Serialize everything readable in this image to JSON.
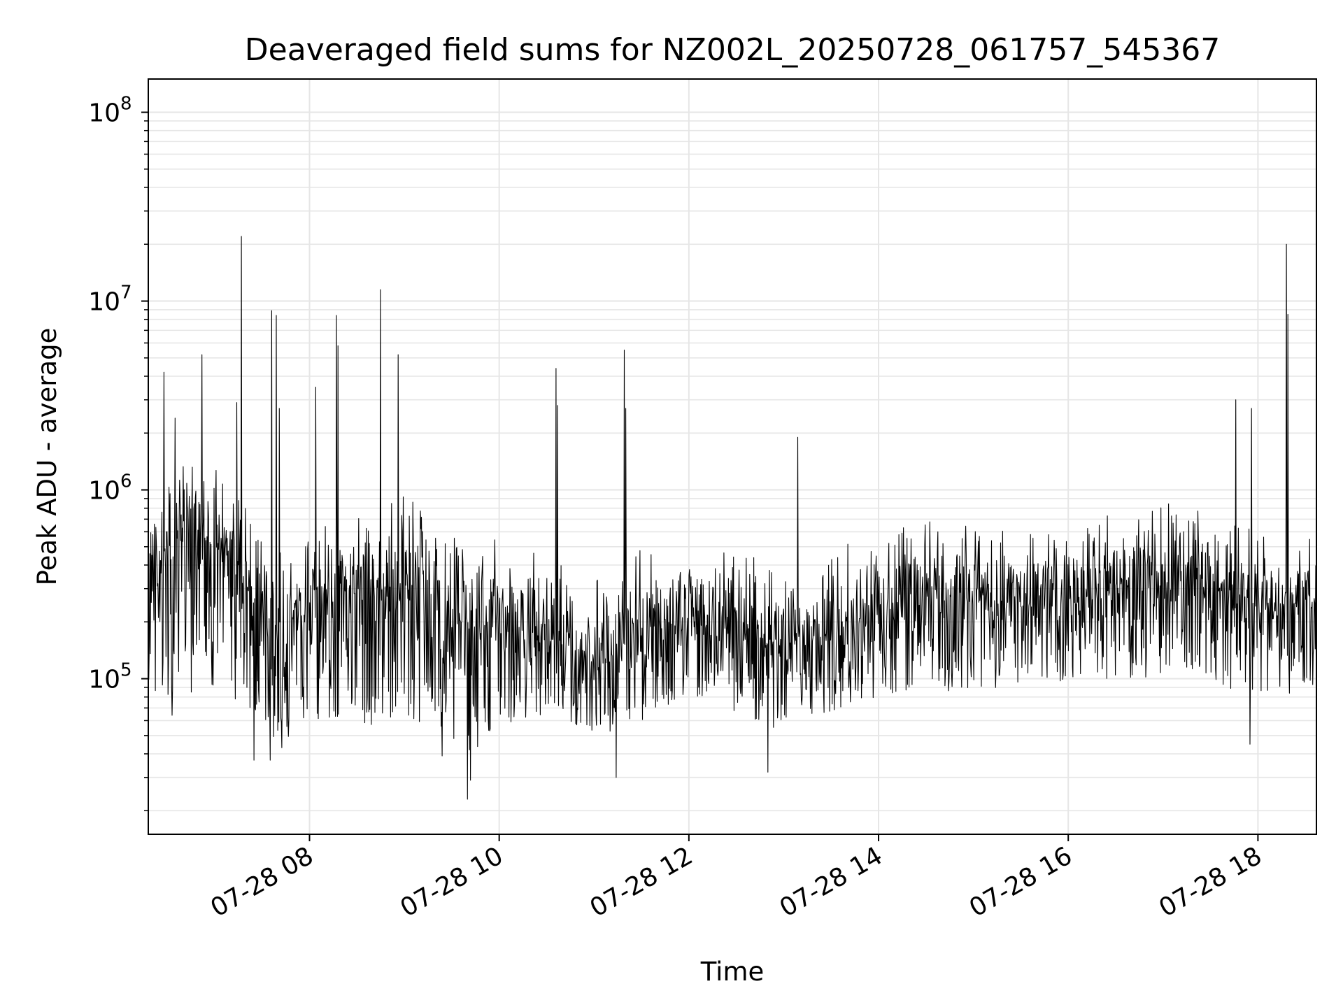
{
  "chart_data": {
    "type": "line",
    "title": "Deaveraged field sums for NZ002L_20250728_061757_545367",
    "xlabel": "Time",
    "ylabel": "Peak ADU - average",
    "yscale": "log",
    "ylim": [
      15000,
      150000000
    ],
    "xlim": [
      "2025-07-28 06:18",
      "2025-07-28 18:37"
    ],
    "grid": true,
    "legend": "none",
    "line_color": "#000000",
    "x_tick_labels": [
      "07-28 08",
      "07-28 10",
      "07-28 12",
      "07-28 14",
      "07-28 16",
      "07-28 18"
    ],
    "x_ticks": [
      "2025-07-28 08:00",
      "2025-07-28 10:00",
      "2025-07-28 12:00",
      "2025-07-28 14:00",
      "2025-07-28 16:00",
      "2025-07-28 18:00"
    ],
    "y_ticks": [
      100000,
      1000000,
      10000000,
      100000000
    ],
    "y_tick_labels": [
      {
        "base": "10",
        "exp": "5"
      },
      {
        "base": "10",
        "exp": "6"
      },
      {
        "base": "10",
        "exp": "7"
      },
      {
        "base": "10",
        "exp": "8"
      }
    ],
    "series": [
      {
        "x": [
          "2025-07-28 06:18",
          "2025-07-28 06:30",
          "2025-07-28 06:45",
          "2025-07-28 07:00",
          "2025-07-28 07:15",
          "2025-07-28 07:30",
          "2025-07-28 07:45",
          "2025-07-28 08:00",
          "2025-07-28 08:15",
          "2025-07-28 08:30",
          "2025-07-28 08:45",
          "2025-07-28 09:00",
          "2025-07-28 09:15",
          "2025-07-28 09:30",
          "2025-07-28 09:45",
          "2025-07-28 10:00",
          "2025-07-28 10:15",
          "2025-07-28 10:30",
          "2025-07-28 10:45",
          "2025-07-28 11:00",
          "2025-07-28 11:15",
          "2025-07-28 11:30",
          "2025-07-28 11:45",
          "2025-07-28 12:00",
          "2025-07-28 12:15",
          "2025-07-28 12:30",
          "2025-07-28 12:45",
          "2025-07-28 13:00",
          "2025-07-28 13:15",
          "2025-07-28 13:30",
          "2025-07-28 13:45",
          "2025-07-28 14:00",
          "2025-07-28 14:15",
          "2025-07-28 14:30",
          "2025-07-28 14:45",
          "2025-07-28 15:00",
          "2025-07-28 15:15",
          "2025-07-28 15:30",
          "2025-07-28 15:45",
          "2025-07-28 16:00",
          "2025-07-28 16:15",
          "2025-07-28 16:30",
          "2025-07-28 16:45",
          "2025-07-28 17:00",
          "2025-07-28 17:15",
          "2025-07-28 17:30",
          "2025-07-28 17:45",
          "2025-07-28 18:00",
          "2025-07-28 18:15",
          "2025-07-28 18:30"
        ],
        "low": [
          100000,
          60000,
          80000,
          90000,
          70000,
          45000,
          40000,
          55000,
          60000,
          50000,
          55000,
          65000,
          50000,
          45000,
          40000,
          55000,
          60000,
          65000,
          55000,
          50000,
          50000,
          60000,
          70000,
          80000,
          75000,
          65000,
          55000,
          55000,
          60000,
          65000,
          75000,
          80000,
          80000,
          90000,
          85000,
          85000,
          90000,
          90000,
          95000,
          95000,
          100000,
          100000,
          95000,
          100000,
          110000,
          100000,
          85000,
          85000,
          80000,
          90000
        ],
        "mid": [
          300000,
          400000,
          600000,
          500000,
          400000,
          200000,
          150000,
          250000,
          300000,
          280000,
          300000,
          320000,
          250000,
          200000,
          180000,
          180000,
          170000,
          160000,
          150000,
          130000,
          130000,
          170000,
          200000,
          220000,
          200000,
          170000,
          160000,
          140000,
          140000,
          170000,
          200000,
          230000,
          250000,
          270000,
          260000,
          250000,
          250000,
          240000,
          250000,
          260000,
          270000,
          280000,
          300000,
          320000,
          330000,
          320000,
          260000,
          230000,
          220000,
          230000
        ],
        "high": [
          700000,
          1100000,
          1500000,
          1300000,
          1000000,
          600000,
          500000,
          800000,
          1000000,
          900000,
          900000,
          1000000,
          700000,
          600000,
          550000,
          600000,
          500000,
          450000,
          400000,
          350000,
          350000,
          500000,
          550000,
          550000,
          500000,
          450000,
          450000,
          380000,
          380000,
          450000,
          550000,
          600000,
          650000,
          700000,
          700000,
          650000,
          650000,
          620000,
          650000,
          700000,
          700000,
          750000,
          800000,
          850000,
          900000,
          850000,
          700000,
          600000,
          550000,
          600000
        ]
      }
    ],
    "spikes": [
      {
        "t": "2025-07-28 06:28",
        "value": 4200000
      },
      {
        "t": "2025-07-28 06:35",
        "value": 2400000
      },
      {
        "t": "2025-07-28 06:52",
        "value": 5200000
      },
      {
        "t": "2025-07-28 07:14",
        "value": 2900000
      },
      {
        "t": "2025-07-28 07:17",
        "value": 22000000
      },
      {
        "t": "2025-07-28 07:36",
        "value": 8900000
      },
      {
        "t": "2025-07-28 07:39",
        "value": 8400000
      },
      {
        "t": "2025-07-28 07:41",
        "value": 2700000
      },
      {
        "t": "2025-07-28 08:04",
        "value": 3500000
      },
      {
        "t": "2025-07-28 08:17",
        "value": 8400000
      },
      {
        "t": "2025-07-28 08:18",
        "value": 5800000
      },
      {
        "t": "2025-07-28 08:45",
        "value": 11500000
      },
      {
        "t": "2025-07-28 08:56",
        "value": 5200000
      },
      {
        "t": "2025-07-28 10:36",
        "value": 4400000
      },
      {
        "t": "2025-07-28 10:37",
        "value": 2800000
      },
      {
        "t": "2025-07-28 11:19",
        "value": 5500000
      },
      {
        "t": "2025-07-28 11:20",
        "value": 2700000
      },
      {
        "t": "2025-07-28 13:09",
        "value": 1900000
      },
      {
        "t": "2025-07-28 17:46",
        "value": 3000000
      },
      {
        "t": "2025-07-28 17:56",
        "value": 2700000
      },
      {
        "t": "2025-07-28 18:18",
        "value": 20000000
      },
      {
        "t": "2025-07-28 18:19",
        "value": 8500000
      }
    ],
    "dips": [
      {
        "t": "2025-07-28 07:25",
        "value": 37000
      },
      {
        "t": "2025-07-28 07:35",
        "value": 37000
      },
      {
        "t": "2025-07-28 09:24",
        "value": 39000
      },
      {
        "t": "2025-07-28 09:40",
        "value": 23000
      },
      {
        "t": "2025-07-28 09:42",
        "value": 29000
      },
      {
        "t": "2025-07-28 11:14",
        "value": 30000
      },
      {
        "t": "2025-07-28 12:50",
        "value": 32000
      },
      {
        "t": "2025-07-28 17:55",
        "value": 45000
      }
    ]
  }
}
